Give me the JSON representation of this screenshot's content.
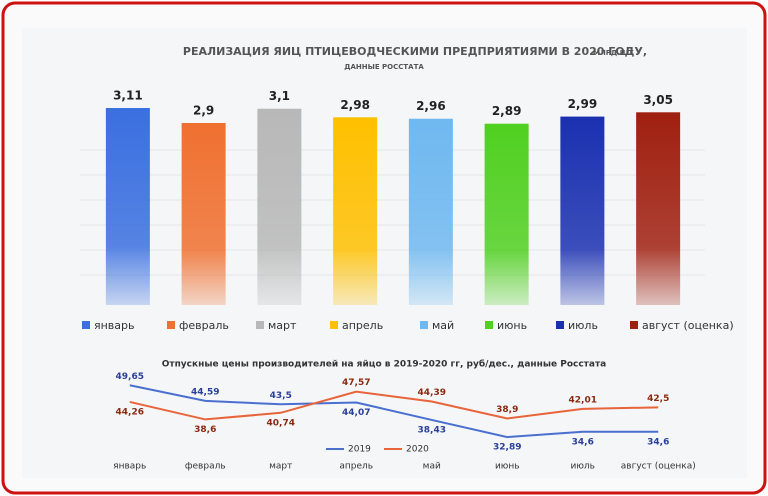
{
  "chart_data": [
    {
      "type": "bar",
      "title": "РЕАЛИЗАЦИЯ ЯИЦ ПТИЦЕВОДЧЕСКИМИ ПРЕДПРИЯТИЯМИ В 2020 ГОДУ,",
      "unit": "МЛРД.ШТ",
      "subtitle": "ДАННЫЕ РОССТАТА",
      "categories": [
        "январь",
        "февраль",
        "март",
        "апрель",
        "май",
        "июнь",
        "июль",
        "август (оценка)"
      ],
      "values": [
        3.11,
        2.9,
        3.1,
        2.98,
        2.96,
        2.89,
        2.99,
        3.05
      ],
      "value_labels": [
        "3,11",
        "2,9",
        "3,1",
        "2,98",
        "2,96",
        "2,89",
        "2,99",
        "3,05"
      ],
      "colors": [
        "#3a6fe0",
        "#f07030",
        "#b8b8b8",
        "#ffc000",
        "#6fb8f0",
        "#50d020",
        "#1a30b0",
        "#a02010"
      ],
      "ylim": [
        0.35,
        3.2
      ],
      "legend": "bottom"
    },
    {
      "type": "line",
      "title": "Отпускные цены производителей на яйцо в 2019-2020 гг, руб/дес., данные Росстата",
      "categories": [
        "январь",
        "февраль",
        "март",
        "апрель",
        "май",
        "июнь",
        "июль",
        "август (оценка)"
      ],
      "series": [
        {
          "name": "2019",
          "color": "#4a6fd0",
          "values": [
            49.65,
            44.59,
            43.5,
            44.07,
            38.43,
            32.89,
            34.6,
            34.6
          ],
          "value_labels": [
            "49,65",
            "44,59",
            "43,5",
            "44,07",
            "38,43",
            "32,89",
            "34,6",
            "34,6"
          ]
        },
        {
          "name": "2020",
          "color": "#e8643a",
          "values": [
            44.26,
            38.6,
            40.74,
            47.57,
            44.39,
            38.9,
            42.01,
            42.5
          ],
          "value_labels": [
            "44,26",
            "38,6",
            "40,74",
            "47,57",
            "44,39",
            "38,9",
            "42,01",
            "42,5"
          ]
        }
      ],
      "ylim": [
        30,
        52
      ],
      "legend": "bottom"
    }
  ]
}
